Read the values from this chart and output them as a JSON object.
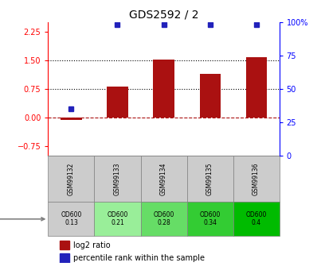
{
  "title": "GDS2592 / 2",
  "samples": [
    "GSM99132",
    "GSM99133",
    "GSM99134",
    "GSM99135",
    "GSM99136"
  ],
  "log2_ratio": [
    -0.07,
    0.82,
    1.52,
    1.15,
    1.58
  ],
  "percentile_rank": [
    35,
    98,
    98,
    98,
    98
  ],
  "growth_protocol": [
    "OD600\n0.13",
    "OD600\n0.21",
    "OD600\n0.28",
    "OD600\n0.34",
    "OD600\n0.4"
  ],
  "growth_colors": [
    "#cccccc",
    "#99ee99",
    "#66dd66",
    "#33cc33",
    "#00bb00"
  ],
  "bar_color": "#aa1111",
  "dot_color": "#2222bb",
  "ylim_left": [
    -1.0,
    2.5
  ],
  "yticks_left": [
    -0.75,
    0,
    0.75,
    1.5,
    2.25
  ],
  "yticks_right": [
    0,
    25,
    50,
    75,
    100
  ],
  "hlines": [
    0.75,
    1.5
  ],
  "zero_line": 0.0,
  "background_color": "#ffffff",
  "plot_bg": "#ffffff"
}
